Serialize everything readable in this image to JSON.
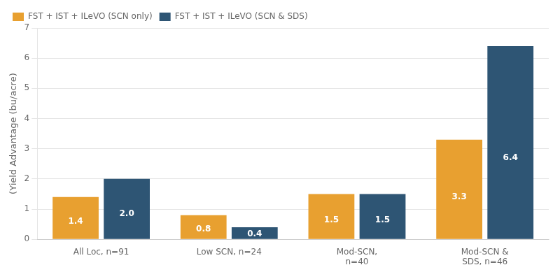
{
  "chart_data": {
    "type": "bar",
    "categories": [
      "All Loc, n=91",
      "Low SCN, n=24",
      "Mod-SCN,\nn=40",
      "Mod-SCN &\nSDS, n=46"
    ],
    "series": [
      {
        "name": "FST + IST + ILeVO (SCN only)",
        "color": "#E8A030",
        "values": [
          1.4,
          0.8,
          1.5,
          3.3
        ]
      },
      {
        "name": "FST + IST + ILeVO (SCN & SDS)",
        "color": "#2E5574",
        "values": [
          2.0,
          0.4,
          1.5,
          6.4
        ],
        "value_labels": [
          "2.0",
          "0.4",
          "1.5",
          "6.4"
        ]
      }
    ],
    "ylabel": "(Yield Advantage (bu/acre)",
    "ylim": [
      0,
      7
    ],
    "yticks": [
      0,
      1,
      2,
      3,
      4,
      5,
      6,
      7
    ],
    "grid": true,
    "legend": "upper left",
    "data_labels": true
  }
}
